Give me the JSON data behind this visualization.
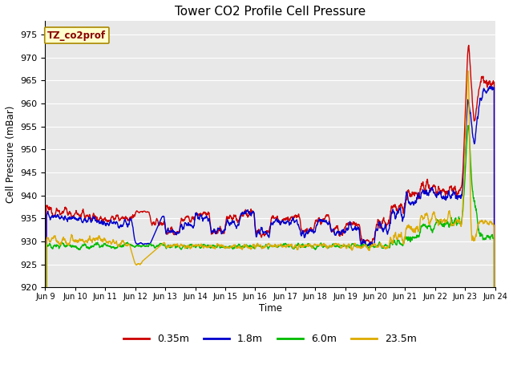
{
  "title": "Tower CO2 Profile Cell Pressure",
  "xlabel": "Time",
  "ylabel": "Cell Pressure (mBar)",
  "ylim": [
    920,
    978
  ],
  "yticks": [
    920,
    925,
    930,
    935,
    940,
    945,
    950,
    955,
    960,
    965,
    970,
    975
  ],
  "annotation_text": "TZ_co2prof",
  "annotation_bg": "#ffffcc",
  "annotation_border": "#aa8800",
  "plot_bg": "#e8e8e8",
  "legend_entries": [
    "0.35m",
    "1.8m",
    "6.0m",
    "23.5m"
  ],
  "legend_colors": [
    "#cc0000",
    "#0000cc",
    "#00bb00",
    "#ddaa00"
  ],
  "n_points": 2000,
  "xtick_labels": [
    "Jun 9",
    "Jun 10",
    "Jun 11",
    "Jun 12",
    "Jun 13",
    "Jun 14",
    "Jun 15",
    "Jun 16",
    "Jun 17",
    "Jun 18",
    "Jun 19",
    "Jun 20",
    "Jun 21",
    "Jun 22",
    "Jun 23",
    "Jun 24"
  ]
}
